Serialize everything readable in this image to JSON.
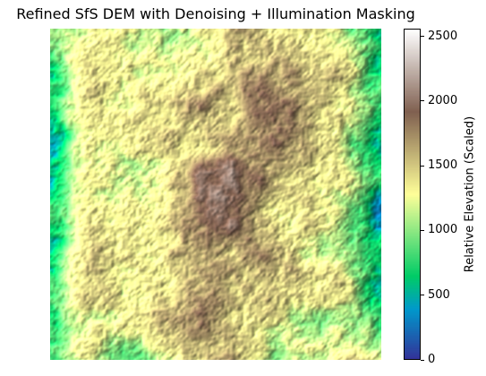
{
  "chart_data": {
    "type": "heatmap",
    "title": "Refined SfS DEM with Denoising + Illumination Masking",
    "colorbar": {
      "label": "Relative Elevation (Scaled)",
      "range": [
        0,
        2560
      ],
      "ticks": [
        0,
        500,
        1000,
        1500,
        2000,
        2500
      ],
      "colormap": "terrain",
      "colors": [
        "#333399",
        "#0099cc",
        "#00cc66",
        "#ffff99",
        "#806050",
        "#ffffff"
      ]
    },
    "axes_visible": false,
    "shading": "hillshade",
    "dominant_range": [
      1000,
      2000
    ]
  }
}
